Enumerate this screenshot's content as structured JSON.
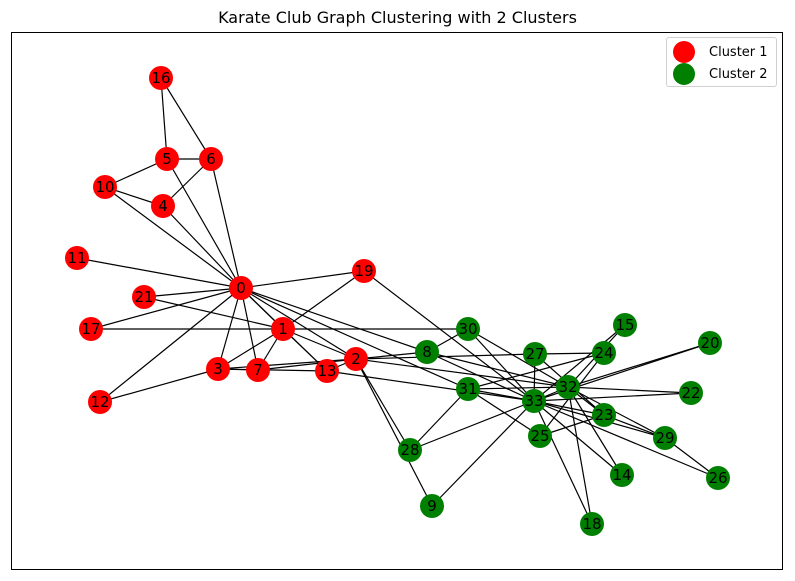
{
  "title": "Karate Club Graph Clustering with 2 Clusters",
  "colors": {
    "cluster1": "#ff0000",
    "cluster2": "#008000",
    "edge": "#000000"
  },
  "legend": [
    {
      "label": "Cluster 1",
      "color": "#ff0000"
    },
    {
      "label": "Cluster 2",
      "color": "#008000"
    }
  ],
  "nodes": [
    {
      "id": "0",
      "cluster": 1
    },
    {
      "id": "1",
      "cluster": 1
    },
    {
      "id": "2",
      "cluster": 1
    },
    {
      "id": "3",
      "cluster": 1
    },
    {
      "id": "4",
      "cluster": 1
    },
    {
      "id": "5",
      "cluster": 1
    },
    {
      "id": "6",
      "cluster": 1
    },
    {
      "id": "7",
      "cluster": 1
    },
    {
      "id": "8",
      "cluster": 2
    },
    {
      "id": "9",
      "cluster": 2
    },
    {
      "id": "10",
      "cluster": 1
    },
    {
      "id": "11",
      "cluster": 1
    },
    {
      "id": "12",
      "cluster": 1
    },
    {
      "id": "13",
      "cluster": 1
    },
    {
      "id": "14",
      "cluster": 2
    },
    {
      "id": "15",
      "cluster": 2
    },
    {
      "id": "16",
      "cluster": 1
    },
    {
      "id": "17",
      "cluster": 1
    },
    {
      "id": "18",
      "cluster": 2
    },
    {
      "id": "19",
      "cluster": 1
    },
    {
      "id": "20",
      "cluster": 2
    },
    {
      "id": "21",
      "cluster": 1
    },
    {
      "id": "22",
      "cluster": 2
    },
    {
      "id": "23",
      "cluster": 2
    },
    {
      "id": "24",
      "cluster": 2
    },
    {
      "id": "25",
      "cluster": 2
    },
    {
      "id": "26",
      "cluster": 2
    },
    {
      "id": "27",
      "cluster": 2
    },
    {
      "id": "28",
      "cluster": 2
    },
    {
      "id": "29",
      "cluster": 2
    },
    {
      "id": "30",
      "cluster": 2
    },
    {
      "id": "31",
      "cluster": 2
    },
    {
      "id": "32",
      "cluster": 2
    },
    {
      "id": "33",
      "cluster": 2
    }
  ],
  "edges": [
    [
      "0",
      "1"
    ],
    [
      "0",
      "2"
    ],
    [
      "0",
      "3"
    ],
    [
      "0",
      "4"
    ],
    [
      "0",
      "5"
    ],
    [
      "0",
      "6"
    ],
    [
      "0",
      "7"
    ],
    [
      "0",
      "8"
    ],
    [
      "0",
      "10"
    ],
    [
      "0",
      "11"
    ],
    [
      "0",
      "12"
    ],
    [
      "0",
      "13"
    ],
    [
      "0",
      "17"
    ],
    [
      "0",
      "19"
    ],
    [
      "0",
      "21"
    ],
    [
      "0",
      "31"
    ],
    [
      "1",
      "2"
    ],
    [
      "1",
      "3"
    ],
    [
      "1",
      "7"
    ],
    [
      "1",
      "13"
    ],
    [
      "1",
      "17"
    ],
    [
      "1",
      "19"
    ],
    [
      "1",
      "21"
    ],
    [
      "1",
      "30"
    ],
    [
      "2",
      "3"
    ],
    [
      "2",
      "7"
    ],
    [
      "2",
      "8"
    ],
    [
      "2",
      "9"
    ],
    [
      "2",
      "13"
    ],
    [
      "2",
      "27"
    ],
    [
      "2",
      "28"
    ],
    [
      "2",
      "32"
    ],
    [
      "3",
      "7"
    ],
    [
      "3",
      "12"
    ],
    [
      "3",
      "13"
    ],
    [
      "4",
      "6"
    ],
    [
      "4",
      "10"
    ],
    [
      "5",
      "6"
    ],
    [
      "5",
      "10"
    ],
    [
      "5",
      "16"
    ],
    [
      "6",
      "16"
    ],
    [
      "8",
      "30"
    ],
    [
      "8",
      "32"
    ],
    [
      "8",
      "33"
    ],
    [
      "9",
      "33"
    ],
    [
      "13",
      "33"
    ],
    [
      "14",
      "32"
    ],
    [
      "14",
      "33"
    ],
    [
      "15",
      "32"
    ],
    [
      "15",
      "33"
    ],
    [
      "18",
      "32"
    ],
    [
      "18",
      "33"
    ],
    [
      "19",
      "33"
    ],
    [
      "20",
      "32"
    ],
    [
      "20",
      "33"
    ],
    [
      "22",
      "32"
    ],
    [
      "22",
      "33"
    ],
    [
      "23",
      "25"
    ],
    [
      "23",
      "27"
    ],
    [
      "23",
      "29"
    ],
    [
      "23",
      "32"
    ],
    [
      "23",
      "33"
    ],
    [
      "24",
      "25"
    ],
    [
      "24",
      "27"
    ],
    [
      "24",
      "31"
    ],
    [
      "25",
      "31"
    ],
    [
      "26",
      "29"
    ],
    [
      "26",
      "33"
    ],
    [
      "27",
      "33"
    ],
    [
      "28",
      "31"
    ],
    [
      "28",
      "33"
    ],
    [
      "29",
      "32"
    ],
    [
      "29",
      "33"
    ],
    [
      "30",
      "32"
    ],
    [
      "30",
      "33"
    ],
    [
      "31",
      "32"
    ],
    [
      "31",
      "33"
    ],
    [
      "32",
      "33"
    ]
  ]
}
